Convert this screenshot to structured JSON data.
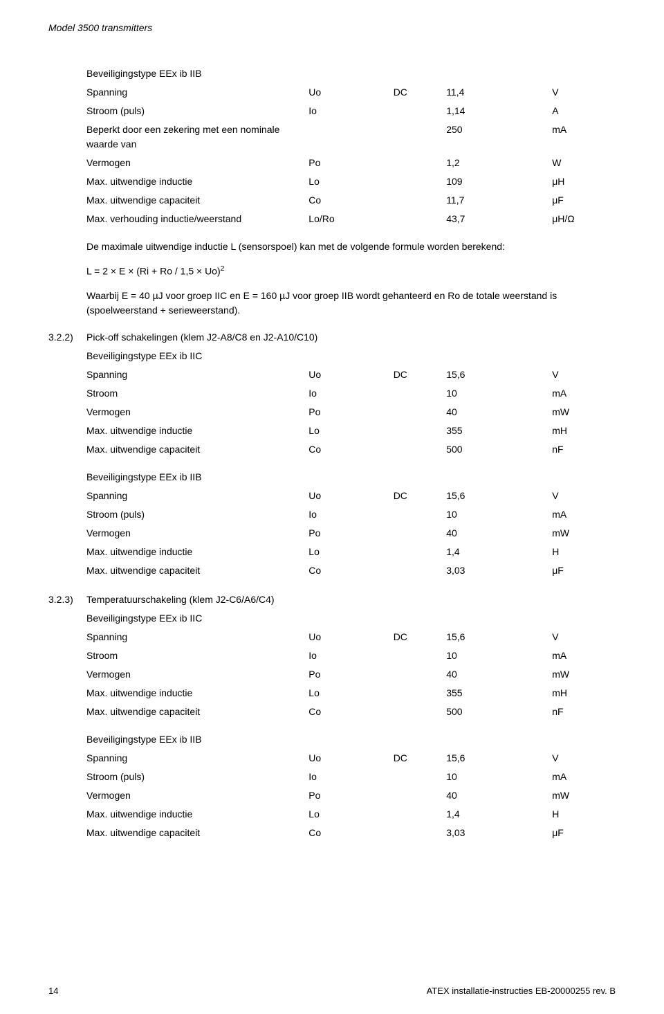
{
  "header": {
    "title": "Model 3500 transmitters"
  },
  "section1": {
    "heading": "Beveiligingstype EEx ib IIB",
    "rows": [
      {
        "label": "Spanning",
        "sym": "Uo",
        "dc": "DC",
        "val": "11,4",
        "unit": "V"
      },
      {
        "label": "Stroom (puls)",
        "sym": "Io",
        "dc": "",
        "val": "1,14",
        "unit": "A"
      },
      {
        "label": "Beperkt door een zekering met een nominale waarde van",
        "sym": "",
        "dc": "",
        "val": "250",
        "unit": "mA"
      },
      {
        "label": "Vermogen",
        "sym": "Po",
        "dc": "",
        "val": "1,2",
        "unit": "W"
      },
      {
        "label": "Max. uitwendige inductie",
        "sym": "Lo",
        "dc": "",
        "val": "109",
        "unit": "μH"
      },
      {
        "label": "Max. uitwendige capaciteit",
        "sym": "Co",
        "dc": "",
        "val": "11,7",
        "unit": "μF"
      },
      {
        "label": "Max. verhouding inductie/weerstand",
        "sym": "Lo/Ro",
        "dc": "",
        "val": "43,7",
        "unit": "μH/Ω"
      }
    ]
  },
  "formula": {
    "intro": "De maximale uitwendige inductie L (sensorspoel) kan met de volgende formule worden berekend:",
    "expr_base": "L = 2 × E × (Ri + Ro / 1,5 × Uo)",
    "expr_sup": "2",
    "note": "Waarbij E = 40 µJ voor groep IIC en E = 160 µJ voor groep IIB wordt gehanteerd en Ro de totale weerstand is (spoelweerstand + serieweerstand)."
  },
  "sec322": {
    "num": "3.2.2)",
    "title": "Pick-off schakelingen (klem J2-A8/C8 en J2-A10/C10)",
    "iic": {
      "heading": "Beveiligingstype EEx ib IIC",
      "rows": [
        {
          "label": "Spanning",
          "sym": "Uo",
          "dc": "DC",
          "val": "15,6",
          "unit": "V"
        },
        {
          "label": "Stroom",
          "sym": "Io",
          "dc": "",
          "val": "10",
          "unit": "mA"
        },
        {
          "label": "Vermogen",
          "sym": "Po",
          "dc": "",
          "val": "40",
          "unit": "mW"
        },
        {
          "label": "Max. uitwendige inductie",
          "sym": "Lo",
          "dc": "",
          "val": "355",
          "unit": "mH"
        },
        {
          "label": "Max. uitwendige capaciteit",
          "sym": "Co",
          "dc": "",
          "val": "500",
          "unit": "nF"
        }
      ]
    },
    "iib": {
      "heading": "Beveiligingstype EEx ib IIB",
      "rows": [
        {
          "label": "Spanning",
          "sym": "Uo",
          "dc": "DC",
          "val": "15,6",
          "unit": "V"
        },
        {
          "label": "Stroom (puls)",
          "sym": "Io",
          "dc": "",
          "val": "10",
          "unit": "mA"
        },
        {
          "label": "Vermogen",
          "sym": "Po",
          "dc": "",
          "val": "40",
          "unit": "mW"
        },
        {
          "label": "Max. uitwendige inductie",
          "sym": "Lo",
          "dc": "",
          "val": "1,4",
          "unit": "H"
        },
        {
          "label": "Max. uitwendige capaciteit",
          "sym": "Co",
          "dc": "",
          "val": "3,03",
          "unit": "μF"
        }
      ]
    }
  },
  "sec323": {
    "num": "3.2.3)",
    "title": "Temperatuurschakeling (klem J2-C6/A6/C4)",
    "iic": {
      "heading": "Beveiligingstype EEx ib IIC",
      "rows": [
        {
          "label": "Spanning",
          "sym": "Uo",
          "dc": "DC",
          "val": "15,6",
          "unit": "V"
        },
        {
          "label": "Stroom",
          "sym": "Io",
          "dc": "",
          "val": "10",
          "unit": "mA"
        },
        {
          "label": "Vermogen",
          "sym": "Po",
          "dc": "",
          "val": "40",
          "unit": "mW"
        },
        {
          "label": "Max. uitwendige inductie",
          "sym": "Lo",
          "dc": "",
          "val": "355",
          "unit": "mH"
        },
        {
          "label": "Max. uitwendige capaciteit",
          "sym": "Co",
          "dc": "",
          "val": "500",
          "unit": "nF"
        }
      ]
    },
    "iib": {
      "heading": "Beveiligingstype EEx ib IIB",
      "rows": [
        {
          "label": "Spanning",
          "sym": "Uo",
          "dc": "DC",
          "val": "15,6",
          "unit": "V"
        },
        {
          "label": "Stroom (puls)",
          "sym": "Io",
          "dc": "",
          "val": "10",
          "unit": "mA"
        },
        {
          "label": "Vermogen",
          "sym": "Po",
          "dc": "",
          "val": "40",
          "unit": "mW"
        },
        {
          "label": "Max. uitwendige inductie",
          "sym": "Lo",
          "dc": "",
          "val": "1,4",
          "unit": "H"
        },
        {
          "label": "Max. uitwendige capaciteit",
          "sym": "Co",
          "dc": "",
          "val": "3,03",
          "unit": "μF"
        }
      ]
    }
  },
  "footer": {
    "page": "14",
    "doc": "ATEX installatie-instructies EB-20000255 rev. B"
  }
}
